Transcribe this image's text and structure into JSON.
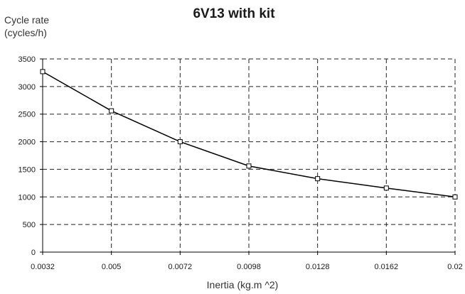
{
  "chart_data": {
    "type": "line",
    "title": "6V13 with kit",
    "ylabel_line1": "Cycle rate",
    "ylabel_line2": "(cycles/h)",
    "xlabel": "Inertia (kg.m ^2)",
    "categories": [
      "0.0032",
      "0.005",
      "0.0072",
      "0.0098",
      "0.0128",
      "0.0162",
      "0.02"
    ],
    "series": [
      {
        "values": [
          3270,
          2560,
          2000,
          1560,
          1330,
          1160,
          1000
        ]
      }
    ],
    "ylim": [
      0,
      3500
    ],
    "yticks": [
      0,
      500,
      1000,
      1500,
      2000,
      2500,
      3000,
      3500
    ],
    "grid": true,
    "colors": {
      "line": "#000000",
      "marker_fill": "#ffffff",
      "grid": "#222222"
    }
  }
}
